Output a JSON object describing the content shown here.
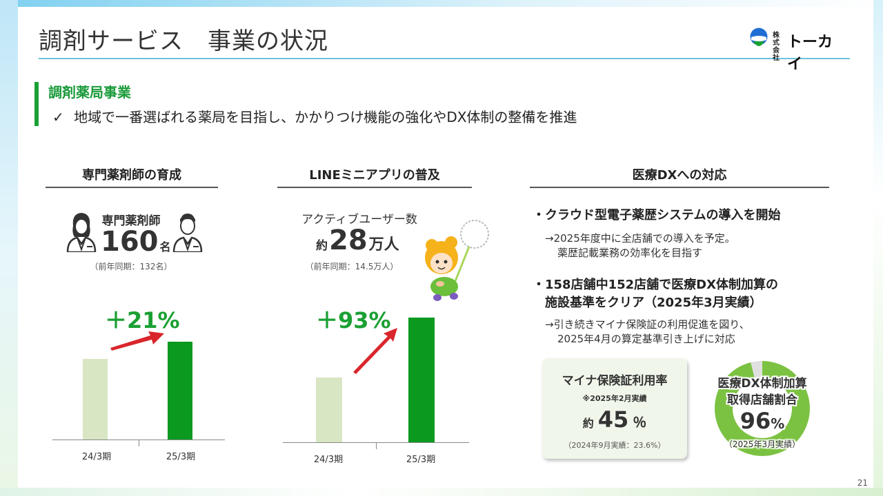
{
  "header": {
    "title": "調剤サービス　事業の状況"
  },
  "logo": {
    "small_text": "株式会社",
    "name": "トーカイ"
  },
  "section": {
    "title": "調剤薬局事業",
    "check_mark": "✓",
    "description": "地域で一番選ばれる薬局を目指し、かかりつけ機能の強化やDX体制の整備を推進"
  },
  "col1": {
    "heading": "専門薬剤師の育成",
    "stat_label": "専門薬剤師",
    "stat_value": "160",
    "stat_unit": "名",
    "stat_prev": "（前年同期：132名）",
    "growth": "＋21%",
    "chart_data": {
      "type": "bar",
      "categories": [
        "24/3期",
        "25/3期"
      ],
      "values": [
        132,
        160
      ],
      "ylim": [
        0,
        180
      ],
      "grid": false
    }
  },
  "col2": {
    "heading": "LINEミニアプリの普及",
    "stat_label": "アクティブユーザー数",
    "stat_prefix": "約",
    "stat_value": "28",
    "stat_unit": "万人",
    "stat_prev": "（前年同期：14.5万人）",
    "growth": "＋93%",
    "chart_data": {
      "type": "bar",
      "categories": [
        "24/3期",
        "25/3期"
      ],
      "values": [
        14.5,
        28
      ],
      "ylim": [
        0,
        31
      ],
      "grid": false
    }
  },
  "col3": {
    "heading": "医療DXへの対応",
    "bullet1_head": "・クラウド型電子薬歴システムの導入を開始",
    "bullet1_line1": "→2025年度中に全店舗での導入を予定。",
    "bullet1_line2": "薬歴記載業務の効率化を目指す",
    "bullet2_head1": "・158店舗中152店舗で医療DX体制加算の",
    "bullet2_head2": "施設基準をクリア（2025年3月実績）",
    "bullet2_line1": "→引き続きマイナ保険証の利用促進を図り、",
    "bullet2_line2": "2025年4月の算定基準引き上げに対応",
    "mina": {
      "title": "マイナ保険証利用率",
      "note": "※2025年2月実績",
      "prefix": "約",
      "value": "45",
      "unit": "％",
      "prev": "（2024年9月実績：23.6%）"
    },
    "donut": {
      "title1": "医療DX体制加算",
      "title2": "取得店舗割合",
      "value": "96",
      "unit": "%",
      "note": "（2025年3月実績）",
      "chart_data": {
        "type": "pie",
        "values": [
          96,
          4
        ],
        "colors": [
          "#7cc242",
          "#e0e0e0"
        ]
      }
    }
  },
  "page_number": "21",
  "colors": {
    "accent_green": "#1aa033",
    "bar_green": "#0b9a1f",
    "bar_pale": "#d8e6c4",
    "title_rule": "#6cc3df",
    "arrow_red": "#d9262c"
  }
}
